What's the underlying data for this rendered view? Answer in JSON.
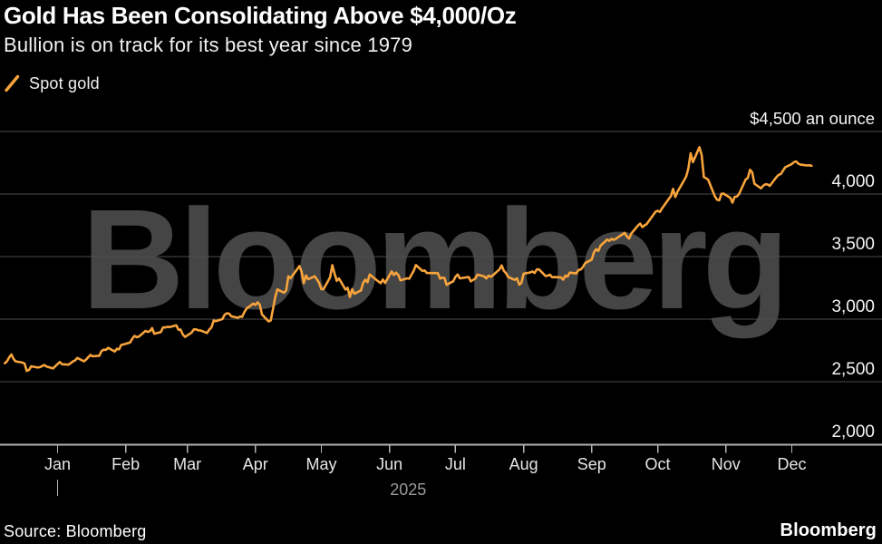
{
  "watermark": {
    "text": "Bloomberg"
  },
  "footer": {
    "source": "Source: Bloomberg",
    "logo": "Bloomberg"
  },
  "chart_data": {
    "type": "line",
    "title": "Gold Has Been Consolidating Above $4,000/Oz",
    "subtitle": "Bullion is on track for its best year since 1979",
    "colors": {
      "background": "#000000",
      "line": "#F8A43C",
      "grid": "#4d4d4d",
      "axis": "#b3b3b3",
      "tick_label": "#f5f5f5",
      "month_label": "#e6e6e6",
      "year_label": "#9b9b9b",
      "watermark": "#454545"
    },
    "grid": true,
    "legend_position": "top-left",
    "y_axis": {
      "side": "right",
      "range": [
        2000,
        4500
      ],
      "baseline_value": 2000,
      "ticks": [
        {
          "value": 2000,
          "label": "2,000"
        },
        {
          "value": 2500,
          "label": "2,500"
        },
        {
          "value": 3000,
          "label": "3,000"
        },
        {
          "value": 3500,
          "label": "3,500"
        },
        {
          "value": 4000,
          "label": "4,000"
        }
      ],
      "top_label": {
        "value": 4500,
        "label": "$4,500 an ounce"
      }
    },
    "x_axis": {
      "ticks": [
        {
          "date": "2025-01-01",
          "label": "Jan"
        },
        {
          "date": "2025-02-01",
          "label": "Feb"
        },
        {
          "date": "2025-03-01",
          "label": "Mar"
        },
        {
          "date": "2025-04-01",
          "label": "Apr"
        },
        {
          "date": "2025-05-01",
          "label": "May"
        },
        {
          "date": "2025-06-01",
          "label": "Jun"
        },
        {
          "date": "2025-07-01",
          "label": "Jul"
        },
        {
          "date": "2025-08-01",
          "label": "Aug"
        },
        {
          "date": "2025-09-01",
          "label": "Sep"
        },
        {
          "date": "2025-10-01",
          "label": "Oct"
        },
        {
          "date": "2025-11-01",
          "label": "Nov"
        },
        {
          "date": "2025-12-01",
          "label": "Dec"
        }
      ],
      "year": {
        "label": "2025",
        "tick_date": "2025-01-01"
      }
    },
    "series": [
      {
        "name": "Spot gold",
        "color": "#F8A43C",
        "unit": "USD per ounce",
        "points": [
          [
            "2024-12-08",
            2648
          ],
          [
            "2024-12-09",
            2663
          ],
          [
            "2024-12-10",
            2694
          ],
          [
            "2024-12-11",
            2718
          ],
          [
            "2024-12-12",
            2681
          ],
          [
            "2024-12-13",
            2662
          ],
          [
            "2024-12-16",
            2653
          ],
          [
            "2024-12-17",
            2646
          ],
          [
            "2024-12-18",
            2586
          ],
          [
            "2024-12-19",
            2594
          ],
          [
            "2024-12-20",
            2623
          ],
          [
            "2024-12-23",
            2613
          ],
          [
            "2024-12-24",
            2617
          ],
          [
            "2024-12-26",
            2633
          ],
          [
            "2024-12-27",
            2621
          ],
          [
            "2024-12-30",
            2606
          ],
          [
            "2024-12-31",
            2625
          ],
          [
            "2025-01-02",
            2657
          ],
          [
            "2025-01-03",
            2640
          ],
          [
            "2025-01-06",
            2636
          ],
          [
            "2025-01-07",
            2649
          ],
          [
            "2025-01-08",
            2662
          ],
          [
            "2025-01-09",
            2670
          ],
          [
            "2025-01-10",
            2690
          ],
          [
            "2025-01-13",
            2663
          ],
          [
            "2025-01-14",
            2677
          ],
          [
            "2025-01-15",
            2697
          ],
          [
            "2025-01-16",
            2714
          ],
          [
            "2025-01-17",
            2703
          ],
          [
            "2025-01-20",
            2708
          ],
          [
            "2025-01-21",
            2745
          ],
          [
            "2025-01-22",
            2756
          ],
          [
            "2025-01-23",
            2754
          ],
          [
            "2025-01-24",
            2771
          ],
          [
            "2025-01-27",
            2741
          ],
          [
            "2025-01-28",
            2763
          ],
          [
            "2025-01-29",
            2759
          ],
          [
            "2025-01-30",
            2794
          ],
          [
            "2025-01-31",
            2798
          ],
          [
            "2025-02-03",
            2814
          ],
          [
            "2025-02-04",
            2844
          ],
          [
            "2025-02-05",
            2866
          ],
          [
            "2025-02-06",
            2856
          ],
          [
            "2025-02-07",
            2861
          ],
          [
            "2025-02-10",
            2906
          ],
          [
            "2025-02-11",
            2898
          ],
          [
            "2025-02-12",
            2904
          ],
          [
            "2025-02-13",
            2928
          ],
          [
            "2025-02-14",
            2883
          ],
          [
            "2025-02-17",
            2897
          ],
          [
            "2025-02-18",
            2935
          ],
          [
            "2025-02-19",
            2933
          ],
          [
            "2025-02-20",
            2939
          ],
          [
            "2025-02-21",
            2936
          ],
          [
            "2025-02-24",
            2951
          ],
          [
            "2025-02-25",
            2915
          ],
          [
            "2025-02-26",
            2916
          ],
          [
            "2025-02-27",
            2877
          ],
          [
            "2025-02-28",
            2858
          ],
          [
            "2025-03-03",
            2893
          ],
          [
            "2025-03-04",
            2918
          ],
          [
            "2025-03-05",
            2919
          ],
          [
            "2025-03-06",
            2911
          ],
          [
            "2025-03-07",
            2910
          ],
          [
            "2025-03-10",
            2889
          ],
          [
            "2025-03-11",
            2916
          ],
          [
            "2025-03-12",
            2934
          ],
          [
            "2025-03-13",
            2989
          ],
          [
            "2025-03-14",
            2984
          ],
          [
            "2025-03-17",
            3001
          ],
          [
            "2025-03-18",
            3035
          ],
          [
            "2025-03-19",
            3047
          ],
          [
            "2025-03-20",
            3044
          ],
          [
            "2025-03-21",
            3023
          ],
          [
            "2025-03-24",
            3011
          ],
          [
            "2025-03-25",
            3020
          ],
          [
            "2025-03-26",
            3019
          ],
          [
            "2025-03-27",
            3057
          ],
          [
            "2025-03-28",
            3085
          ],
          [
            "2025-03-31",
            3124
          ],
          [
            "2025-04-01",
            3114
          ],
          [
            "2025-04-02",
            3134
          ],
          [
            "2025-04-03",
            3115
          ],
          [
            "2025-04-04",
            3038
          ],
          [
            "2025-04-07",
            2982
          ],
          [
            "2025-04-08",
            2990
          ],
          [
            "2025-04-09",
            3082
          ],
          [
            "2025-04-10",
            3176
          ],
          [
            "2025-04-11",
            3238
          ],
          [
            "2025-04-14",
            3211
          ],
          [
            "2025-04-15",
            3230
          ],
          [
            "2025-04-16",
            3343
          ],
          [
            "2025-04-17",
            3327
          ],
          [
            "2025-04-21",
            3424
          ],
          [
            "2025-04-22",
            3381
          ],
          [
            "2025-04-23",
            3288
          ],
          [
            "2025-04-24",
            3349
          ],
          [
            "2025-04-25",
            3319
          ],
          [
            "2025-04-28",
            3343
          ],
          [
            "2025-04-29",
            3317
          ],
          [
            "2025-04-30",
            3289
          ],
          [
            "2025-05-01",
            3239
          ],
          [
            "2025-05-02",
            3240
          ],
          [
            "2025-05-05",
            3334
          ],
          [
            "2025-05-06",
            3431
          ],
          [
            "2025-05-07",
            3364
          ],
          [
            "2025-05-08",
            3306
          ],
          [
            "2025-05-09",
            3325
          ],
          [
            "2025-05-12",
            3236
          ],
          [
            "2025-05-13",
            3250
          ],
          [
            "2025-05-14",
            3177
          ],
          [
            "2025-05-15",
            3240
          ],
          [
            "2025-05-16",
            3203
          ],
          [
            "2025-05-19",
            3230
          ],
          [
            "2025-05-20",
            3290
          ],
          [
            "2025-05-21",
            3315
          ],
          [
            "2025-05-22",
            3295
          ],
          [
            "2025-05-23",
            3357
          ],
          [
            "2025-05-27",
            3300
          ],
          [
            "2025-05-28",
            3288
          ],
          [
            "2025-05-29",
            3317
          ],
          [
            "2025-05-30",
            3289
          ],
          [
            "2025-06-02",
            3381
          ],
          [
            "2025-06-03",
            3353
          ],
          [
            "2025-06-04",
            3372
          ],
          [
            "2025-06-05",
            3353
          ],
          [
            "2025-06-06",
            3310
          ],
          [
            "2025-06-09",
            3326
          ],
          [
            "2025-06-10",
            3323
          ],
          [
            "2025-06-11",
            3355
          ],
          [
            "2025-06-12",
            3386
          ],
          [
            "2025-06-13",
            3432
          ],
          [
            "2025-06-16",
            3385
          ],
          [
            "2025-06-17",
            3389
          ],
          [
            "2025-06-18",
            3369
          ],
          [
            "2025-06-20",
            3368
          ],
          [
            "2025-06-23",
            3368
          ],
          [
            "2025-06-24",
            3324
          ],
          [
            "2025-06-25",
            3332
          ],
          [
            "2025-06-26",
            3328
          ],
          [
            "2025-06-27",
            3274
          ],
          [
            "2025-06-30",
            3303
          ],
          [
            "2025-07-01",
            3338
          ],
          [
            "2025-07-02",
            3357
          ],
          [
            "2025-07-03",
            3326
          ],
          [
            "2025-07-07",
            3337
          ],
          [
            "2025-07-08",
            3302
          ],
          [
            "2025-07-09",
            3313
          ],
          [
            "2025-07-10",
            3324
          ],
          [
            "2025-07-11",
            3356
          ],
          [
            "2025-07-14",
            3343
          ],
          [
            "2025-07-15",
            3325
          ],
          [
            "2025-07-16",
            3347
          ],
          [
            "2025-07-17",
            3339
          ],
          [
            "2025-07-18",
            3350
          ],
          [
            "2025-07-21",
            3397
          ],
          [
            "2025-07-22",
            3430
          ],
          [
            "2025-07-23",
            3387
          ],
          [
            "2025-07-24",
            3368
          ],
          [
            "2025-07-25",
            3337
          ],
          [
            "2025-07-28",
            3314
          ],
          [
            "2025-07-29",
            3326
          ],
          [
            "2025-07-30",
            3275
          ],
          [
            "2025-07-31",
            3290
          ],
          [
            "2025-08-01",
            3363
          ],
          [
            "2025-08-04",
            3373
          ],
          [
            "2025-08-05",
            3381
          ],
          [
            "2025-08-06",
            3369
          ],
          [
            "2025-08-07",
            3397
          ],
          [
            "2025-08-08",
            3398
          ],
          [
            "2025-08-11",
            3344
          ],
          [
            "2025-08-12",
            3348
          ],
          [
            "2025-08-13",
            3355
          ],
          [
            "2025-08-14",
            3335
          ],
          [
            "2025-08-15",
            3336
          ],
          [
            "2025-08-18",
            3334
          ],
          [
            "2025-08-19",
            3316
          ],
          [
            "2025-08-20",
            3348
          ],
          [
            "2025-08-21",
            3339
          ],
          [
            "2025-08-22",
            3372
          ],
          [
            "2025-08-25",
            3365
          ],
          [
            "2025-08-26",
            3393
          ],
          [
            "2025-08-27",
            3397
          ],
          [
            "2025-08-28",
            3417
          ],
          [
            "2025-08-29",
            3448
          ],
          [
            "2025-09-01",
            3476
          ],
          [
            "2025-09-02",
            3533
          ],
          [
            "2025-09-03",
            3559
          ],
          [
            "2025-09-04",
            3546
          ],
          [
            "2025-09-05",
            3587
          ],
          [
            "2025-09-08",
            3636
          ],
          [
            "2025-09-09",
            3626
          ],
          [
            "2025-09-10",
            3641
          ],
          [
            "2025-09-11",
            3634
          ],
          [
            "2025-09-12",
            3643
          ],
          [
            "2025-09-15",
            3679
          ],
          [
            "2025-09-16",
            3689
          ],
          [
            "2025-09-17",
            3660
          ],
          [
            "2025-09-18",
            3644
          ],
          [
            "2025-09-19",
            3685
          ],
          [
            "2025-09-22",
            3748
          ],
          [
            "2025-09-23",
            3764
          ],
          [
            "2025-09-24",
            3736
          ],
          [
            "2025-09-25",
            3749
          ],
          [
            "2025-09-26",
            3760
          ],
          [
            "2025-09-29",
            3833
          ],
          [
            "2025-09-30",
            3858
          ],
          [
            "2025-10-01",
            3866
          ],
          [
            "2025-10-02",
            3857
          ],
          [
            "2025-10-03",
            3886
          ],
          [
            "2025-10-06",
            3960
          ],
          [
            "2025-10-07",
            3983
          ],
          [
            "2025-10-08",
            4041
          ],
          [
            "2025-10-09",
            3976
          ],
          [
            "2025-10-10",
            4018
          ],
          [
            "2025-10-13",
            4110
          ],
          [
            "2025-10-14",
            4143
          ],
          [
            "2025-10-15",
            4209
          ],
          [
            "2025-10-16",
            4326
          ],
          [
            "2025-10-17",
            4255
          ],
          [
            "2025-10-20",
            4375
          ],
          [
            "2025-10-21",
            4310
          ],
          [
            "2025-10-22",
            4135
          ],
          [
            "2025-10-23",
            4127
          ],
          [
            "2025-10-24",
            4113
          ],
          [
            "2025-10-27",
            3982
          ],
          [
            "2025-10-28",
            3955
          ],
          [
            "2025-10-29",
            3950
          ],
          [
            "2025-10-30",
            4002
          ],
          [
            "2025-10-31",
            4003
          ],
          [
            "2025-11-03",
            3970
          ],
          [
            "2025-11-04",
            3931
          ],
          [
            "2025-11-05",
            3977
          ],
          [
            "2025-11-06",
            3980
          ],
          [
            "2025-11-07",
            4000
          ],
          [
            "2025-11-10",
            4116
          ],
          [
            "2025-11-11",
            4129
          ],
          [
            "2025-11-12",
            4194
          ],
          [
            "2025-11-13",
            4173
          ],
          [
            "2025-11-14",
            4082
          ],
          [
            "2025-11-17",
            4046
          ],
          [
            "2025-11-18",
            4067
          ],
          [
            "2025-11-19",
            4078
          ],
          [
            "2025-11-20",
            4077
          ],
          [
            "2025-11-21",
            4065
          ],
          [
            "2025-11-24",
            4135
          ],
          [
            "2025-11-25",
            4153
          ],
          [
            "2025-11-26",
            4160
          ],
          [
            "2025-11-28",
            4214
          ],
          [
            "2025-12-01",
            4240
          ],
          [
            "2025-12-02",
            4255
          ],
          [
            "2025-12-03",
            4261
          ],
          [
            "2025-12-04",
            4242
          ],
          [
            "2025-12-05",
            4235
          ],
          [
            "2025-12-08",
            4228
          ],
          [
            "2025-12-09",
            4230
          ],
          [
            "2025-12-10",
            4225
          ]
        ]
      }
    ]
  }
}
